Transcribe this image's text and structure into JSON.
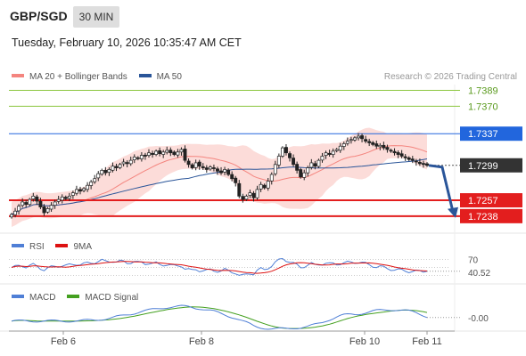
{
  "header": {
    "symbol": "GBP/SGD",
    "timeframe": "30 MIN",
    "datetime": "Tuesday, February 10, 2026 10:35:47 AM CET"
  },
  "legend": {
    "price": [
      {
        "label": "MA 20 + Bollinger Bands",
        "color": "#f4857f"
      },
      {
        "label": "MA 50",
        "color": "#2a5599"
      }
    ],
    "rsi": [
      {
        "label": "RSI",
        "color": "#4f7fd6"
      },
      {
        "label": "9MA",
        "color": "#dd1111"
      }
    ],
    "macd": [
      {
        "label": "MACD",
        "color": "#4f7fd6"
      },
      {
        "label": "MACD Signal",
        "color": "#44a020"
      }
    ]
  },
  "credit": "Research © 2026 Trading Central",
  "chart_data": {
    "type": "candlestick",
    "x_ticks": [
      "Feb 6",
      "Feb 8",
      "Feb 10",
      "Feb 11"
    ],
    "price_axis": {
      "min": 1.7225,
      "max": 1.7396
    },
    "levels": [
      {
        "value": 1.7389,
        "label": "1.7389",
        "role": "resistance",
        "color": "#8cc63f"
      },
      {
        "value": 1.737,
        "label": "1.7370",
        "role": "resistance",
        "color": "#8cc63f"
      },
      {
        "value": 1.7337,
        "label": "1.7337",
        "role": "pivot",
        "color": "#2266dd"
      },
      {
        "value": 1.7299,
        "label": "1.7299",
        "role": "last price",
        "color": "#333333"
      },
      {
        "value": 1.7257,
        "label": "1.7257",
        "role": "support",
        "color": "#e31e1e"
      },
      {
        "value": 1.7238,
        "label": "1.7238",
        "role": "support",
        "color": "#e31e1e"
      }
    ],
    "closes": [
      1.724,
      1.7244,
      1.725,
      1.7255,
      1.7252,
      1.7258,
      1.7262,
      1.7256,
      1.7249,
      1.7242,
      1.7247,
      1.7251,
      1.7255,
      1.7258,
      1.7261,
      1.7259,
      1.7262,
      1.7266,
      1.727,
      1.7268,
      1.7271,
      1.7275,
      1.7279,
      1.7283,
      1.7289,
      1.7293,
      1.729,
      1.7294,
      1.7298,
      1.7296,
      1.73,
      1.7303,
      1.7301,
      1.7305,
      1.7309,
      1.7307,
      1.7311,
      1.731,
      1.7314,
      1.7312,
      1.7316,
      1.7313,
      1.7315,
      1.7317,
      1.7314,
      1.7312,
      1.7315,
      1.7318,
      1.7305,
      1.73,
      1.7296,
      1.7302,
      1.7298,
      1.7296,
      1.7294,
      1.7297,
      1.7295,
      1.7292,
      1.729,
      1.7294,
      1.7288,
      1.7283,
      1.7278,
      1.7262,
      1.7258,
      1.7262,
      1.7266,
      1.726,
      1.727,
      1.7276,
      1.7272,
      1.728,
      1.7288,
      1.73,
      1.731,
      1.732,
      1.7314,
      1.7308,
      1.73,
      1.7293,
      1.7285,
      1.729,
      1.7296,
      1.7302,
      1.7298,
      1.7305,
      1.731,
      1.7314,
      1.7312,
      1.7316,
      1.7318,
      1.7322,
      1.7325,
      1.7328,
      1.733,
      1.7332,
      1.7334,
      1.7331,
      1.7328,
      1.7326,
      1.7324,
      1.7322,
      1.7323,
      1.732,
      1.7318,
      1.7316,
      1.7314,
      1.7312,
      1.731,
      1.7308,
      1.7306,
      1.7305,
      1.7303,
      1.7301,
      1.73,
      1.7299
    ],
    "rsi": {
      "labels": [
        "70",
        "40.52"
      ],
      "rsi_last": 40.52,
      "bounds": [
        30,
        70
      ]
    },
    "macd": {
      "label": "-0.00",
      "last": 0.0
    }
  }
}
